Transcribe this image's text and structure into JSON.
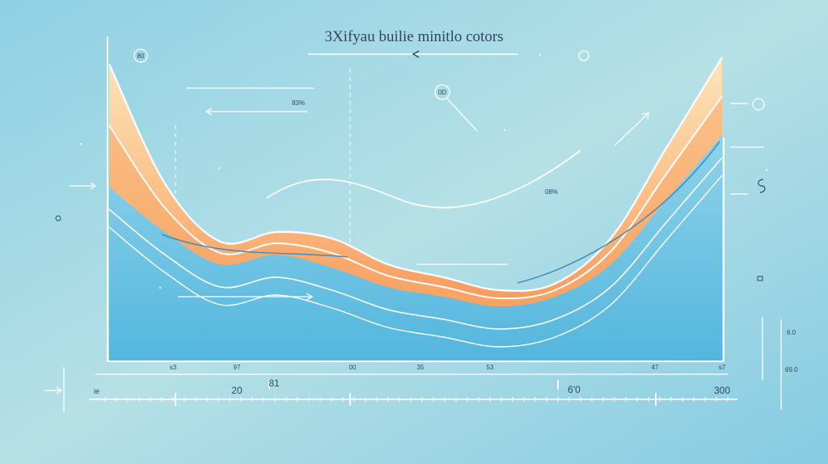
{
  "chart_data": {
    "type": "area",
    "title": "3Xifyau builie minitlo cotors",
    "xlabel": "",
    "ylabel": "",
    "x_tick_labels": [
      "s3",
      "97",
      "00",
      "35",
      "53",
      "47",
      "s7"
    ],
    "axis_number_labels": [
      "20",
      "81",
      "6'0",
      "300"
    ],
    "axis_edge_label": "ie",
    "annotations": [
      "80",
      "0D",
      "83%",
      "08%"
    ],
    "right_values": [
      "6.0",
      "69.0"
    ],
    "series": [
      {
        "x": [
          0,
          2,
          4,
          6,
          8,
          10,
          12,
          14,
          16,
          18,
          20,
          22
        ],
        "values": [
          92,
          55,
          37,
          40,
          38,
          30,
          26,
          22,
          24,
          38,
          66,
          94
        ]
      },
      {
        "x": [
          0,
          2,
          4,
          6,
          8,
          10,
          12,
          14,
          16,
          18,
          20,
          22
        ],
        "values": [
          54,
          40,
          30,
          33,
          29,
          23,
          20,
          17,
          20,
          30,
          50,
          70
        ]
      }
    ],
    "grid": false,
    "colors": {
      "background": "#9fd6e6",
      "area_top": "#fde3b8",
      "area_mid": "#fbbf87",
      "area_bottom": "#f89c5e",
      "lower_area": "#5bbde0",
      "line": "#ffffff",
      "label": "#2c4a66"
    }
  }
}
